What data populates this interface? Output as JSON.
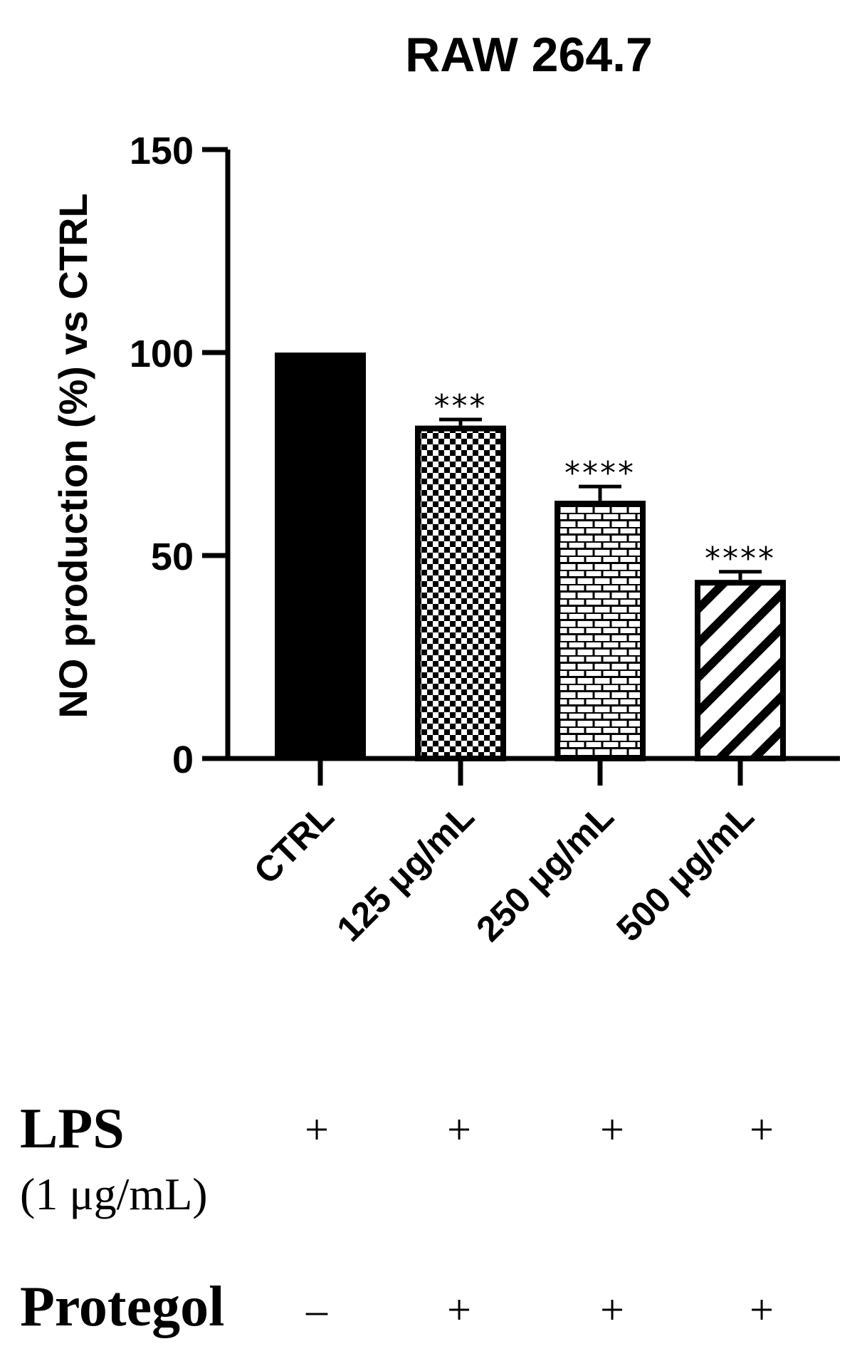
{
  "chart_data": {
    "type": "bar",
    "title": "RAW 264.7",
    "ylabel": "NO production (%) vs CTRL",
    "xlabel": "",
    "ylim": [
      0,
      150
    ],
    "yticks": [
      0,
      50,
      100,
      150
    ],
    "categories": [
      "CTRL",
      "125 μg/mL",
      "250 μg/mL",
      "500 μg/mL"
    ],
    "values": [
      100,
      82,
      63.5,
      44
    ],
    "errors": [
      0,
      1.5,
      3.5,
      2
    ],
    "significance": [
      "",
      "***",
      "****",
      "****"
    ],
    "patterns": [
      "solid",
      "checker",
      "brick",
      "diagonal"
    ],
    "colors": {
      "bar": "#000000",
      "fill": "#ffffff"
    },
    "grid": false,
    "legend": "none"
  },
  "treatments": {
    "lps": {
      "label": "LPS",
      "sublabel": "(1 μg/mL)",
      "signs": [
        "+",
        "+",
        "+",
        "+"
      ]
    },
    "protegol": {
      "label": "Protegol",
      "signs": [
        "–",
        "+",
        "+",
        "+"
      ]
    }
  }
}
